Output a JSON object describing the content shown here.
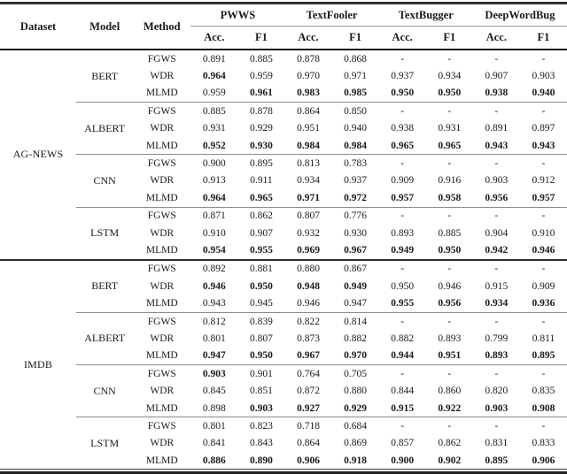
{
  "table": {
    "fixed_columns": [
      "Dataset",
      "Model",
      "Method"
    ],
    "attack_groups": [
      "PWWS",
      "TextFooler",
      "TextBugger",
      "DeepWordBug"
    ],
    "metric_labels": [
      "Acc.",
      "F1"
    ],
    "datasets": [
      {
        "name": "AG-NEWS",
        "models": [
          {
            "name": "BERT",
            "rows": [
              {
                "method": "FGWS",
                "values": [
                  "0.891",
                  "0.885",
                  "0.878",
                  "0.868",
                  "-",
                  "-",
                  "-",
                  "-"
                ],
                "bold": [
                  0,
                  0,
                  0,
                  0,
                  0,
                  0,
                  0,
                  0
                ]
              },
              {
                "method": "WDR",
                "values": [
                  "0.964",
                  "0.959",
                  "0.970",
                  "0.971",
                  "0.937",
                  "0.934",
                  "0.907",
                  "0.903"
                ],
                "bold": [
                  1,
                  0,
                  0,
                  0,
                  0,
                  0,
                  0,
                  0
                ]
              },
              {
                "method": "MLMD",
                "values": [
                  "0.959",
                  "0.961",
                  "0.983",
                  "0.985",
                  "0.950",
                  "0.950",
                  "0.938",
                  "0.940"
                ],
                "bold": [
                  0,
                  1,
                  1,
                  1,
                  1,
                  1,
                  1,
                  1
                ]
              }
            ]
          },
          {
            "name": "ALBERT",
            "rows": [
              {
                "method": "FGWS",
                "values": [
                  "0.885",
                  "0.878",
                  "0.864",
                  "0.850",
                  "-",
                  "-",
                  "-",
                  "-"
                ],
                "bold": [
                  0,
                  0,
                  0,
                  0,
                  0,
                  0,
                  0,
                  0
                ]
              },
              {
                "method": "WDR",
                "values": [
                  "0.931",
                  "0.929",
                  "0.951",
                  "0.940",
                  "0.938",
                  "0.931",
                  "0.891",
                  "0.897"
                ],
                "bold": [
                  0,
                  0,
                  0,
                  0,
                  0,
                  0,
                  0,
                  0
                ]
              },
              {
                "method": "MLMD",
                "values": [
                  "0.952",
                  "0.930",
                  "0.984",
                  "0.984",
                  "0.965",
                  "0.965",
                  "0.943",
                  "0.943"
                ],
                "bold": [
                  1,
                  1,
                  1,
                  1,
                  1,
                  1,
                  1,
                  1
                ]
              }
            ]
          },
          {
            "name": "CNN",
            "rows": [
              {
                "method": "FGWS",
                "values": [
                  "0.900",
                  "0.895",
                  "0.813",
                  "0.783",
                  "-",
                  "-",
                  "-",
                  "-"
                ],
                "bold": [
                  0,
                  0,
                  0,
                  0,
                  0,
                  0,
                  0,
                  0
                ]
              },
              {
                "method": "WDR",
                "values": [
                  "0.913",
                  "0.911",
                  "0.934",
                  "0.937",
                  "0.909",
                  "0.916",
                  "0.903",
                  "0.912"
                ],
                "bold": [
                  0,
                  0,
                  0,
                  0,
                  0,
                  0,
                  0,
                  0
                ]
              },
              {
                "method": "MLMD",
                "values": [
                  "0.964",
                  "0.965",
                  "0.971",
                  "0.972",
                  "0.957",
                  "0.958",
                  "0.956",
                  "0.957"
                ],
                "bold": [
                  1,
                  1,
                  1,
                  1,
                  1,
                  1,
                  1,
                  1
                ]
              }
            ]
          },
          {
            "name": "LSTM",
            "rows": [
              {
                "method": "FGWS",
                "values": [
                  "0.871",
                  "0.862",
                  "0.807",
                  "0.776",
                  "-",
                  "-",
                  "-",
                  "-"
                ],
                "bold": [
                  0,
                  0,
                  0,
                  0,
                  0,
                  0,
                  0,
                  0
                ]
              },
              {
                "method": "WDR",
                "values": [
                  "0.910",
                  "0.907",
                  "0.932",
                  "0.930",
                  "0.893",
                  "0.885",
                  "0.904",
                  "0.910"
                ],
                "bold": [
                  0,
                  0,
                  0,
                  0,
                  0,
                  0,
                  0,
                  0
                ]
              },
              {
                "method": "MLMD",
                "values": [
                  "0.954",
                  "0.955",
                  "0.969",
                  "0.967",
                  "0.949",
                  "0.950",
                  "0.942",
                  "0.946"
                ],
                "bold": [
                  1,
                  1,
                  1,
                  1,
                  1,
                  1,
                  1,
                  1
                ]
              }
            ]
          }
        ]
      },
      {
        "name": "IMDB",
        "models": [
          {
            "name": "BERT",
            "rows": [
              {
                "method": "FGWS",
                "values": [
                  "0.892",
                  "0.881",
                  "0.880",
                  "0.867",
                  "-",
                  "-",
                  "-",
                  "-"
                ],
                "bold": [
                  0,
                  0,
                  0,
                  0,
                  0,
                  0,
                  0,
                  0
                ]
              },
              {
                "method": "WDR",
                "values": [
                  "0.946",
                  "0.950",
                  "0.948",
                  "0.949",
                  "0.950",
                  "0.946",
                  "0.915",
                  "0.909"
                ],
                "bold": [
                  1,
                  1,
                  1,
                  1,
                  0,
                  0,
                  0,
                  0
                ]
              },
              {
                "method": "MLMD",
                "values": [
                  "0.943",
                  "0.945",
                  "0.946",
                  "0.947",
                  "0.955",
                  "0.956",
                  "0.934",
                  "0.936"
                ],
                "bold": [
                  0,
                  0,
                  0,
                  0,
                  1,
                  1,
                  1,
                  1
                ]
              }
            ]
          },
          {
            "name": "ALBERT",
            "rows": [
              {
                "method": "FGWS",
                "values": [
                  "0.812",
                  "0.839",
                  "0.822",
                  "0.814",
                  "-",
                  "-",
                  "-",
                  "-"
                ],
                "bold": [
                  0,
                  0,
                  0,
                  0,
                  0,
                  0,
                  0,
                  0
                ]
              },
              {
                "method": "WDR",
                "values": [
                  "0.801",
                  "0.807",
                  "0.873",
                  "0.882",
                  "0.882",
                  "0.893",
                  "0.799",
                  "0.811"
                ],
                "bold": [
                  0,
                  0,
                  0,
                  0,
                  0,
                  0,
                  0,
                  0
                ]
              },
              {
                "method": "MLMD",
                "values": [
                  "0.947",
                  "0.950",
                  "0.967",
                  "0.970",
                  "0.944",
                  "0.951",
                  "0.893",
                  "0.895"
                ],
                "bold": [
                  1,
                  1,
                  1,
                  1,
                  1,
                  1,
                  1,
                  1
                ]
              }
            ]
          },
          {
            "name": "CNN",
            "rows": [
              {
                "method": "FGWS",
                "values": [
                  "0.903",
                  "0.901",
                  "0.764",
                  "0.705",
                  "-",
                  "-",
                  "-",
                  "-"
                ],
                "bold": [
                  1,
                  0,
                  0,
                  0,
                  0,
                  0,
                  0,
                  0
                ]
              },
              {
                "method": "WDR",
                "values": [
                  "0.845",
                  "0.851",
                  "0.872",
                  "0.880",
                  "0.844",
                  "0.860",
                  "0.820",
                  "0.835"
                ],
                "bold": [
                  0,
                  0,
                  0,
                  0,
                  0,
                  0,
                  0,
                  0
                ]
              },
              {
                "method": "MLMD",
                "values": [
                  "0.898",
                  "0.903",
                  "0.927",
                  "0.929",
                  "0.915",
                  "0.922",
                  "0.903",
                  "0.908"
                ],
                "bold": [
                  0,
                  1,
                  1,
                  1,
                  1,
                  1,
                  1,
                  1
                ]
              }
            ]
          },
          {
            "name": "LSTM",
            "rows": [
              {
                "method": "FGWS",
                "values": [
                  "0.801",
                  "0.823",
                  "0.718",
                  "0.684",
                  "-",
                  "-",
                  "-",
                  "-"
                ],
                "bold": [
                  0,
                  0,
                  0,
                  0,
                  0,
                  0,
                  0,
                  0
                ]
              },
              {
                "method": "WDR",
                "values": [
                  "0.841",
                  "0.843",
                  "0.864",
                  "0.869",
                  "0.857",
                  "0.862",
                  "0.831",
                  "0.833"
                ],
                "bold": [
                  0,
                  0,
                  0,
                  0,
                  0,
                  0,
                  0,
                  0
                ]
              },
              {
                "method": "MLMD",
                "values": [
                  "0.886",
                  "0.890",
                  "0.906",
                  "0.918",
                  "0.900",
                  "0.902",
                  "0.895",
                  "0.906"
                ],
                "bold": [
                  1,
                  1,
                  1,
                  1,
                  1,
                  1,
                  1,
                  1
                ]
              }
            ]
          }
        ]
      }
    ]
  }
}
